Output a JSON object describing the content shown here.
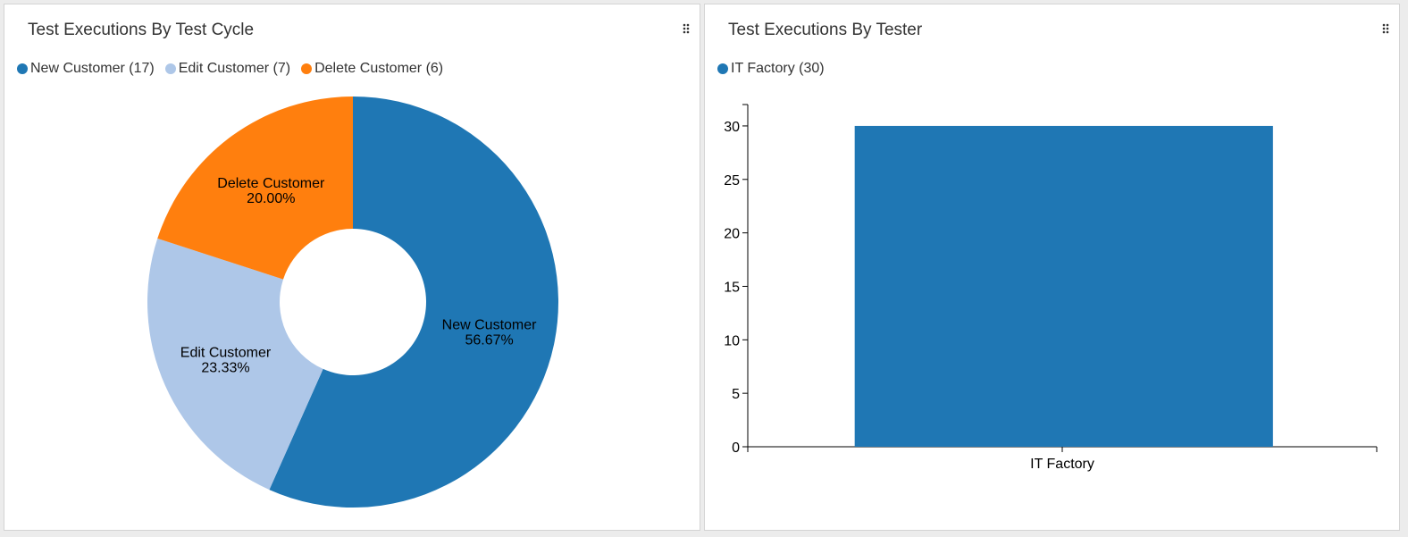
{
  "colors": {
    "new_customer": "#1f77b4",
    "edit_customer": "#aec7e8",
    "delete_customer": "#ff7f0e",
    "bar": "#1f77b4"
  },
  "icons": {
    "drag_handle": "drag-handle-icon"
  },
  "charts": {
    "cycle": {
      "title": "Test Executions By Test Cycle",
      "legend": [
        {
          "label": "New Customer (17)"
        },
        {
          "label": "Edit Customer (7)"
        },
        {
          "label": "Delete Customer (6)"
        }
      ]
    },
    "tester": {
      "title": "Test Executions By Tester",
      "legend": [
        {
          "label": "IT Factory (30)"
        }
      ]
    }
  },
  "chart_data": [
    {
      "type": "pie",
      "donut": true,
      "title": "Test Executions By Test Cycle",
      "slices": [
        {
          "name": "New Customer",
          "value": 17,
          "pct_label": "56.67%",
          "color": "#1f77b4"
        },
        {
          "name": "Edit Customer",
          "value": 7,
          "pct_label": "23.33%",
          "color": "#aec7e8"
        },
        {
          "name": "Delete Customer",
          "value": 6,
          "pct_label": "20.00%",
          "color": "#ff7f0e"
        }
      ],
      "legend_position": "top-left"
    },
    {
      "type": "bar",
      "title": "Test Executions By Tester",
      "categories": [
        "IT Factory"
      ],
      "values": [
        30
      ],
      "ylim": [
        0,
        32
      ],
      "yticks": [
        0,
        5,
        10,
        15,
        20,
        25,
        30
      ],
      "xlabel": "",
      "ylabel": "",
      "color": "#1f77b4",
      "legend_position": "top-left"
    }
  ]
}
